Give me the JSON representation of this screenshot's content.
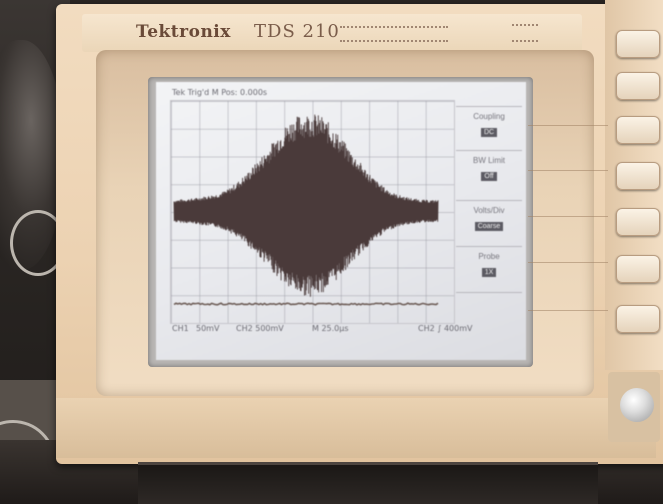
{
  "instrument": {
    "brand": "Tektronix",
    "model": "TDS 210"
  },
  "screen": {
    "status_text": "Tek Trig'd M Pos: 0.000s",
    "bottom": {
      "ch_label": "CH1",
      "ch1_scale": "50mV",
      "ch2_scale": "CH2 500mV",
      "timebase": "M 25.0µs",
      "trigger": "CH2 ∫ 400mV"
    },
    "menu": [
      {
        "label": "Coupling",
        "value": "DC"
      },
      {
        "label": "BW Limit",
        "value": "Off"
      },
      {
        "label": "Volts/Div",
        "value": "Coarse"
      },
      {
        "label": "Probe",
        "value": "1X"
      }
    ]
  },
  "signal": {
    "envelope": [
      0.12,
      0.13,
      0.14,
      0.16,
      0.18,
      0.22,
      0.3,
      0.4,
      0.52,
      0.65,
      0.8,
      0.92,
      0.98,
      1.0,
      0.96,
      0.86,
      0.72,
      0.58,
      0.45,
      0.33,
      0.24,
      0.18,
      0.15,
      0.13,
      0.12,
      0.12
    ],
    "trace_color": "#4a3a3a",
    "trace2_color": "#6e5e58"
  },
  "colors": {
    "screen_bg": "#eceef1",
    "bezel": "#e9d3b6",
    "body": "#f0dabd"
  }
}
